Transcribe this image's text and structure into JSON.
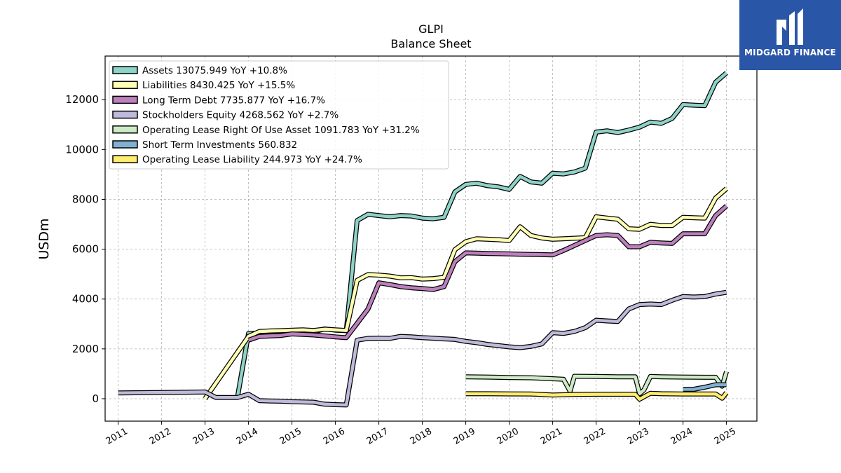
{
  "header": {
    "title_line1": "GLPI",
    "title_line2": "Balance  Sheet"
  },
  "branding": {
    "logo_text": "MIDGARD FINANCE",
    "logo_bg": "#2a56a8"
  },
  "chart_data": {
    "type": "line",
    "title": "GLPI\nBalance  Sheet",
    "xlabel": "",
    "ylabel": "USDm",
    "xlim": [
      2010.7,
      2025.7
    ],
    "ylim": [
      -900,
      13750
    ],
    "grid": true,
    "legend_placement": "top-left",
    "x_ticks": [
      2011,
      2012,
      2013,
      2014,
      2015,
      2016,
      2017,
      2018,
      2019,
      2020,
      2021,
      2022,
      2023,
      2024,
      2025
    ],
    "y_ticks": [
      0,
      2000,
      4000,
      6000,
      8000,
      10000,
      12000
    ],
    "series": [
      {
        "name": "Assets",
        "legend_label": "Assets  13075.949 YoY +10.8%",
        "color": "#8dd3c7",
        "x": [
          2013.75,
          2014.0,
          2014.25,
          2014.5,
          2014.75,
          2015.0,
          2015.25,
          2015.5,
          2015.75,
          2016.0,
          2016.25,
          2016.5,
          2016.75,
          2017.0,
          2017.25,
          2017.5,
          2017.75,
          2018.0,
          2018.25,
          2018.5,
          2018.75,
          2019.0,
          2019.25,
          2019.5,
          2019.75,
          2020.0,
          2020.25,
          2020.5,
          2020.75,
          2021.0,
          2021.25,
          2021.5,
          2021.75,
          2022.0,
          2022.25,
          2022.5,
          2022.75,
          2023.0,
          2023.25,
          2023.5,
          2023.75,
          2024.0,
          2024.25,
          2024.5,
          2024.75,
          2025.0
        ],
        "values": [
          100,
          2620,
          2620,
          2650,
          2680,
          2700,
          2700,
          2680,
          2800,
          2750,
          2730,
          7150,
          7400,
          7350,
          7300,
          7350,
          7330,
          7250,
          7220,
          7280,
          8300,
          8600,
          8650,
          8550,
          8500,
          8400,
          8920,
          8700,
          8650,
          9050,
          9020,
          9100,
          9250,
          10700,
          10750,
          10680,
          10780,
          10900,
          11100,
          11050,
          11250,
          11800,
          11780,
          11760,
          12700,
          13076
        ]
      },
      {
        "name": "Liabilities",
        "legend_label": "Liabilities  8430.425 YoY +15.5%",
        "color": "#ffffb3",
        "x": [
          2013.0,
          2014.0,
          2014.25,
          2014.5,
          2014.75,
          2015.0,
          2015.25,
          2015.5,
          2015.75,
          2016.0,
          2016.25,
          2016.5,
          2016.75,
          2017.0,
          2017.25,
          2017.5,
          2017.75,
          2018.0,
          2018.25,
          2018.5,
          2018.75,
          2019.0,
          2019.25,
          2019.5,
          2019.75,
          2020.0,
          2020.25,
          2020.5,
          2020.75,
          2021.0,
          2021.25,
          2021.5,
          2021.75,
          2022.0,
          2022.25,
          2022.5,
          2022.75,
          2023.0,
          2023.25,
          2023.5,
          2023.75,
          2024.0,
          2024.25,
          2024.5,
          2024.75,
          2025.0
        ],
        "values": [
          0,
          2500,
          2700,
          2720,
          2730,
          2750,
          2760,
          2740,
          2790,
          2760,
          2740,
          4750,
          4980,
          4960,
          4920,
          4850,
          4860,
          4800,
          4820,
          4870,
          5980,
          6300,
          6420,
          6400,
          6380,
          6350,
          6900,
          6550,
          6450,
          6400,
          6420,
          6440,
          6460,
          7300,
          7250,
          7200,
          6820,
          6800,
          7000,
          6950,
          6950,
          7280,
          7260,
          7250,
          8050,
          8430
        ]
      },
      {
        "name": "Long Term Debt",
        "legend_label": "Long Term Debt  7735.877 YoY +16.7%",
        "color": "#bc80bd",
        "x": [
          2014.0,
          2014.25,
          2014.5,
          2014.75,
          2015.0,
          2015.25,
          2015.5,
          2015.75,
          2016.0,
          2016.25,
          2016.75,
          2017.0,
          2017.25,
          2017.5,
          2017.75,
          2018.0,
          2018.25,
          2018.5,
          2018.75,
          2019.0,
          2019.25,
          2019.5,
          2019.75,
          2020.0,
          2020.25,
          2020.5,
          2020.75,
          2021.0,
          2021.25,
          2021.5,
          2021.75,
          2022.0,
          2022.25,
          2022.5,
          2022.75,
          2023.0,
          2023.25,
          2023.5,
          2023.75,
          2024.0,
          2024.25,
          2024.5,
          2024.75,
          2025.0
        ],
        "values": [
          2350,
          2500,
          2520,
          2540,
          2600,
          2580,
          2560,
          2520,
          2480,
          2450,
          3600,
          4650,
          4580,
          4500,
          4450,
          4420,
          4380,
          4500,
          5500,
          5850,
          5840,
          5830,
          5820,
          5810,
          5800,
          5790,
          5780,
          5770,
          5950,
          6150,
          6350,
          6550,
          6580,
          6550,
          6100,
          6100,
          6280,
          6250,
          6230,
          6620,
          6620,
          6620,
          7350,
          7736
        ]
      },
      {
        "name": "Stockholders Equity",
        "legend_label": "Stockholders Equity  4268.562 YoY +2.7%",
        "color": "#bebada",
        "x": [
          2011.0,
          2013.0,
          2013.25,
          2013.5,
          2013.75,
          2014.0,
          2014.25,
          2014.5,
          2014.75,
          2015.0,
          2015.25,
          2015.5,
          2015.75,
          2016.0,
          2016.25,
          2016.5,
          2016.75,
          2017.0,
          2017.25,
          2017.5,
          2017.75,
          2018.0,
          2018.25,
          2018.5,
          2018.75,
          2019.0,
          2019.25,
          2019.5,
          2019.75,
          2020.0,
          2020.25,
          2020.5,
          2020.75,
          2021.0,
          2021.25,
          2021.5,
          2021.75,
          2022.0,
          2022.25,
          2022.5,
          2022.75,
          2023.0,
          2023.25,
          2023.5,
          2023.75,
          2024.0,
          2024.25,
          2024.5,
          2024.75,
          2025.0
        ],
        "values": [
          230,
          270,
          50,
          50,
          50,
          180,
          -80,
          -90,
          -100,
          -120,
          -130,
          -140,
          -220,
          -240,
          -250,
          2350,
          2420,
          2430,
          2420,
          2500,
          2480,
          2450,
          2430,
          2400,
          2380,
          2300,
          2250,
          2180,
          2130,
          2080,
          2050,
          2100,
          2200,
          2650,
          2620,
          2700,
          2850,
          3150,
          3120,
          3100,
          3600,
          3780,
          3800,
          3780,
          3950,
          4100,
          4080,
          4100,
          4200,
          4269
        ]
      },
      {
        "name": "Operating Lease Right Of Use Asset",
        "legend_label": "Operating Lease Right Of Use Asset  1091.783 YoY +31.2%",
        "color": "#ccebc5",
        "x": [
          2019.0,
          2019.5,
          2020.0,
          2020.5,
          2021.0,
          2021.25,
          2021.4,
          2021.5,
          2022.0,
          2022.5,
          2022.9,
          2023.0,
          2023.1,
          2023.25,
          2023.5,
          2024.0,
          2024.5,
          2024.75,
          2024.9,
          2025.0
        ],
        "values": [
          880,
          870,
          850,
          840,
          800,
          780,
          300,
          900,
          890,
          880,
          880,
          200,
          350,
          890,
          880,
          870,
          860,
          860,
          500,
          1092
        ]
      },
      {
        "name": "Short Term Investments",
        "legend_label": "Short Term Investments  560.832",
        "color": "#80b1d3",
        "x": [
          2024.0,
          2024.25,
          2024.5,
          2024.75,
          2025.0
        ],
        "values": [
          380,
          380,
          460,
          560,
          561
        ]
      },
      {
        "name": "Operating Lease Liability",
        "legend_label": "Operating Lease Liability  244.973 YoY +24.7%",
        "color": "#ffed6f",
        "x": [
          2019.0,
          2019.5,
          2020.0,
          2020.5,
          2021.0,
          2021.5,
          2022.0,
          2022.5,
          2022.9,
          2023.0,
          2023.25,
          2023.5,
          2024.0,
          2024.5,
          2024.75,
          2024.9,
          2025.0
        ],
        "values": [
          200,
          200,
          195,
          190,
          150,
          170,
          180,
          180,
          180,
          -20,
          220,
          200,
          190,
          190,
          190,
          20,
          245
        ]
      }
    ]
  }
}
